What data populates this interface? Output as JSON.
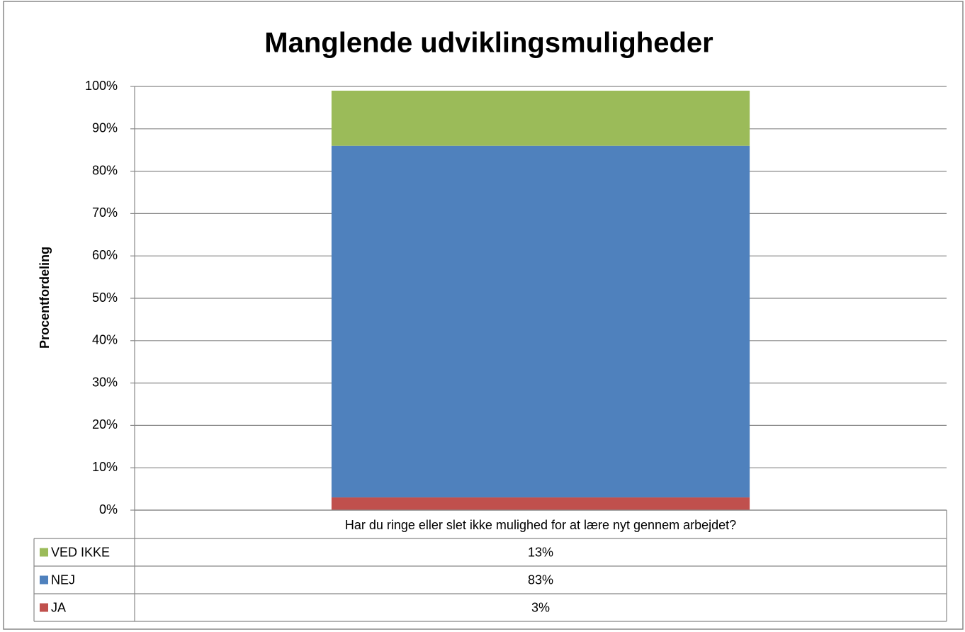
{
  "chart_data": {
    "type": "stacked_bar",
    "title": "Manglende udviklingsmuligheder",
    "y_label": "Procentfordeling",
    "categories": [
      "Har du ringe eller slet ikke mulighed for at lære nyt gennem arbejdet?"
    ],
    "series": [
      {
        "name": "JA",
        "color": "#c0504d",
        "values": [
          3
        ],
        "value_labels": [
          "3%"
        ]
      },
      {
        "name": "NEJ",
        "color": "#4f81bd",
        "values": [
          83
        ],
        "value_labels": [
          "83%"
        ]
      },
      {
        "name": "VED IKKE",
        "color": "#9bbb59",
        "values": [
          13
        ],
        "value_labels": [
          "13%"
        ]
      }
    ],
    "ylim": [
      0,
      100
    ],
    "yticks": [
      {
        "value": 0,
        "label": "0%"
      },
      {
        "value": 10,
        "label": "10%"
      },
      {
        "value": 20,
        "label": "20%"
      },
      {
        "value": 30,
        "label": "30%"
      },
      {
        "value": 40,
        "label": "40%"
      },
      {
        "value": 50,
        "label": "50%"
      },
      {
        "value": 60,
        "label": "60%"
      },
      {
        "value": 70,
        "label": "70%"
      },
      {
        "value": 80,
        "label": "80%"
      },
      {
        "value": 90,
        "label": "90%"
      },
      {
        "value": 100,
        "label": "100%"
      }
    ],
    "grid": true,
    "data_table": true
  }
}
